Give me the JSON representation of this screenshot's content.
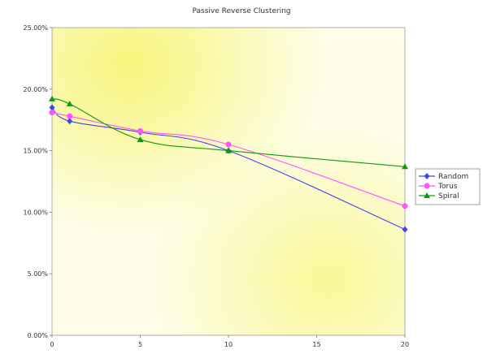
{
  "chart_data": {
    "type": "line",
    "title": "Passive Reverse Clustering",
    "xlabel": "",
    "ylabel": "",
    "x": [
      0,
      1,
      5,
      10,
      20
    ],
    "xlim": [
      0,
      20
    ],
    "xticks": [
      "0",
      "5",
      "10",
      "15",
      "20"
    ],
    "xtick_values": [
      0,
      5,
      10,
      15,
      20
    ],
    "ylim": [
      0,
      25
    ],
    "yticks": [
      "0.00%",
      "5.00%",
      "10.00%",
      "15.00%",
      "20.00%",
      "25.00%"
    ],
    "ytick_values": [
      0,
      5,
      10,
      15,
      20,
      25
    ],
    "grid": false,
    "legend_position": "right",
    "series": [
      {
        "name": "Random",
        "color": "#4444ee",
        "marker": "diamond",
        "values": [
          18.5,
          17.4,
          16.5,
          15.0,
          8.6
        ]
      },
      {
        "name": "Torus",
        "color": "#ff55ff",
        "marker": "circle",
        "values": [
          18.1,
          17.8,
          16.6,
          15.5,
          10.5
        ]
      },
      {
        "name": "Spiral",
        "color": "#119911",
        "marker": "triangle",
        "values": [
          19.2,
          18.8,
          15.9,
          15.0,
          13.7
        ]
      }
    ]
  }
}
